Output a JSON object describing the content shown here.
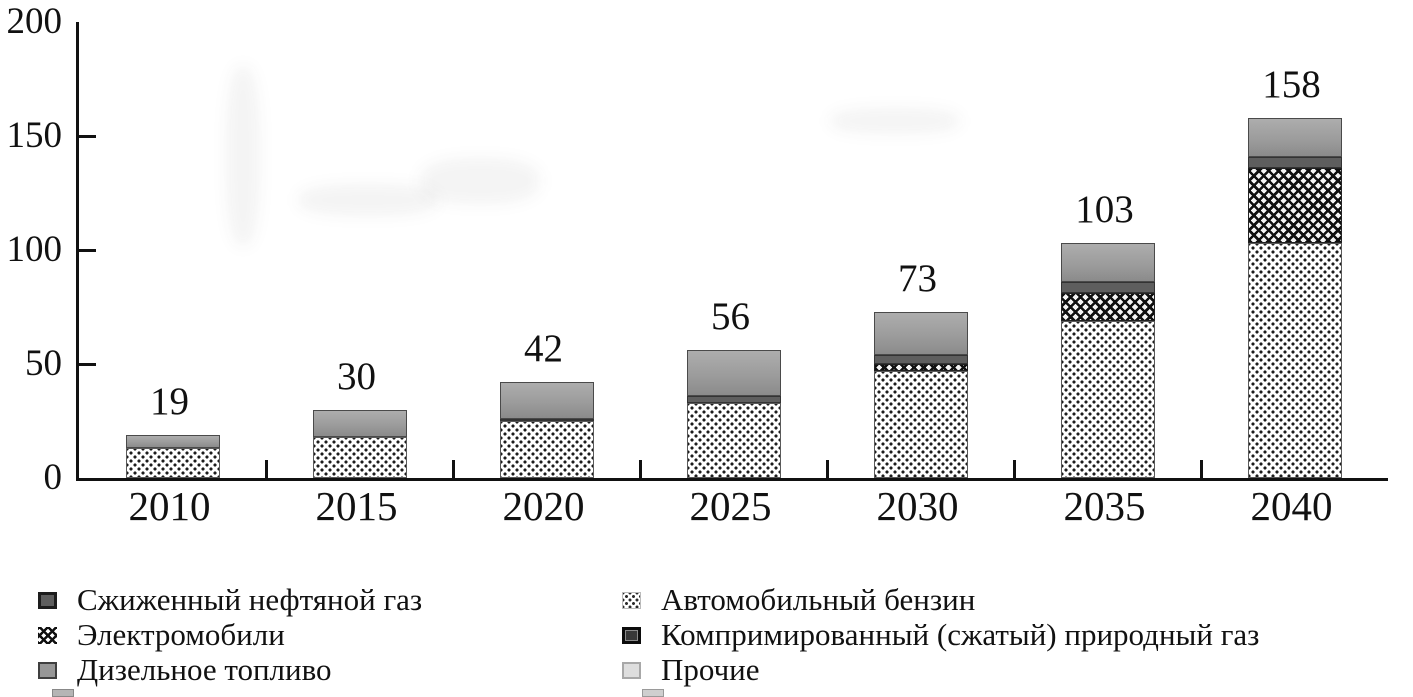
{
  "chart_data": {
    "type": "bar",
    "stacked": true,
    "title": "",
    "xlabel": "",
    "ylabel": "",
    "ylim": [
      0,
      200
    ],
    "yticks": [
      0,
      50,
      100,
      150,
      200
    ],
    "grid": false,
    "legend_position": "bottom",
    "categories": [
      "2010",
      "2015",
      "2020",
      "2025",
      "2030",
      "2035",
      "2040"
    ],
    "totals": [
      19,
      30,
      42,
      56,
      73,
      103,
      158
    ],
    "series": [
      {
        "name": "Автомобильный бензин",
        "swatch": "benzin",
        "pattern": "diagonal-dot-stipple",
        "values": [
          13,
          18,
          25,
          33,
          47,
          69,
          103
        ]
      },
      {
        "name": "Электромобили",
        "swatch": "ev",
        "pattern": "crosshatch-weave",
        "values": [
          0,
          0,
          0,
          0,
          3,
          12,
          33
        ]
      },
      {
        "name": "Компримированный (сжатый) природный газ",
        "swatch": "cng",
        "color": "#2a2a2a",
        "values": [
          0,
          0,
          0,
          0,
          0,
          0,
          0
        ]
      },
      {
        "name": "Сжиженный нефтяной газ",
        "swatch": "lpg",
        "color": "#5e5e5e",
        "values": [
          0,
          0,
          1,
          3,
          4,
          5,
          5
        ]
      },
      {
        "name": "Дизельное топливо",
        "swatch": "diesel",
        "color": "#9c9c9c",
        "values": [
          6,
          12,
          16,
          20,
          19,
          17,
          17
        ]
      },
      {
        "name": "Прочие",
        "swatch": "prochie",
        "color": "#dedede",
        "values": [
          0,
          0,
          0,
          0,
          0,
          0,
          0
        ]
      }
    ]
  },
  "legend": {
    "columns": [
      {
        "items": [
          {
            "label": "Сжиженный нефтяной газ",
            "swatch": "lpg"
          },
          {
            "label": "Электромобили",
            "swatch": "ev"
          },
          {
            "label": "Дизельное топливо",
            "swatch": "diesel"
          }
        ]
      },
      {
        "items": [
          {
            "label": "Автомобильный бензин",
            "swatch": "benzin"
          },
          {
            "label": "Компримированный (сжатый) природный газ",
            "swatch": "cng"
          },
          {
            "label": "Прочие",
            "swatch": "prochie"
          }
        ]
      }
    ]
  }
}
